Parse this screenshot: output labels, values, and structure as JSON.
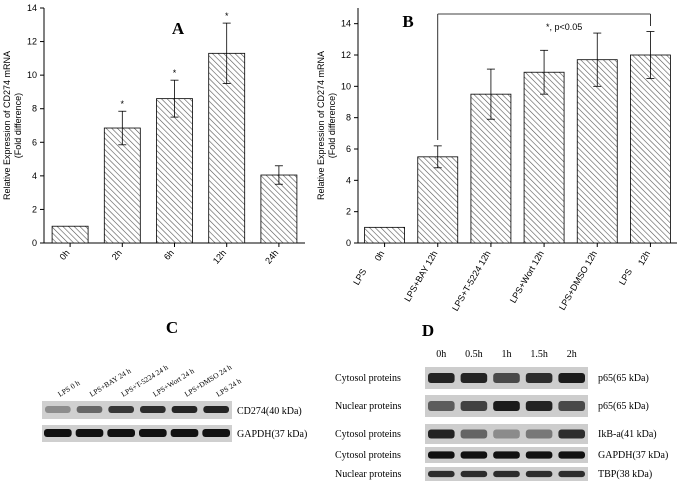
{
  "chart_data": [
    {
      "type": "bar",
      "panel_label": "A",
      "categories": [
        "0h",
        "2h",
        "6h",
        "12h",
        "24h"
      ],
      "values": [
        1.0,
        6.85,
        8.6,
        11.3,
        4.05
      ],
      "errors": [
        0,
        1.0,
        1.1,
        1.8,
        0.55
      ],
      "significance": [
        "",
        "*",
        "*",
        "*",
        ""
      ],
      "ylabel": "Relative Expression of CD274 mRNA\n(Fold difference)",
      "ylim": [
        0,
        14
      ],
      "yticks": [
        0,
        2,
        4,
        6,
        8,
        10,
        12,
        14
      ],
      "grid": false
    },
    {
      "type": "bar",
      "panel_label": "B",
      "categories": [
        "LPS\n0h",
        "LPS+BAY 12h",
        "LPS+T-5224 12h",
        "LPS+Wort 12h",
        "LPS+DMSO 12h",
        "LPS\n12h"
      ],
      "values": [
        1.0,
        5.5,
        9.5,
        10.9,
        11.7,
        12.0
      ],
      "errors": [
        0,
        0.7,
        1.6,
        1.4,
        1.7,
        1.5
      ],
      "annotation": "*, p<0.05",
      "ylabel": "Relative Expression of CD274 mRNA\n(Fold difference)",
      "ylim": [
        0,
        15
      ],
      "yticks": [
        0,
        2,
        4,
        6,
        8,
        10,
        12,
        14
      ],
      "grid": false
    }
  ],
  "blot_c": {
    "panel_label": "C",
    "lanes": [
      "LPS 0 h",
      "LPS+BAY 24 h",
      "LPS+T-5224 24 h",
      "LPS+Wort 24 h",
      "LPS+DMSO 24 h",
      "LPS 24 h"
    ],
    "rows": [
      "CD274(40 kDa)",
      "GAPDH(37 kDa)"
    ],
    "cd274_intensity": [
      0.35,
      0.55,
      0.8,
      0.85,
      0.9,
      0.9
    ]
  },
  "blot_d": {
    "panel_label": "D",
    "timepoints": [
      "0h",
      "0.5h",
      "1h",
      "1.5h",
      "2h"
    ],
    "rows": [
      {
        "left": "Cytosol  proteins",
        "right": "p65(65 kDa)"
      },
      {
        "left": "Nuclear  proteins",
        "right": "p65(65 kDa)"
      },
      {
        "left": "Cytosol  proteins",
        "right": "IkB-a(41 kDa)"
      },
      {
        "left": "Cytosol  proteins",
        "right": "GAPDH(37 kDa)"
      },
      {
        "left": "Nuclear  proteins",
        "right": "TBP(38 kDa)"
      }
    ]
  }
}
